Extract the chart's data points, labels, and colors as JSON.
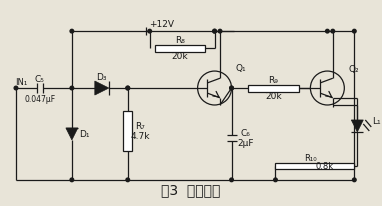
{
  "title": "图3  耦合电路",
  "title_fontsize": 10,
  "bg_color": "#e8e4d8",
  "line_color": "#1a1a1a",
  "components": {
    "vcc_label": "+12V",
    "c5_label": "C₅",
    "c5_value": "0.047μF",
    "d3_label": "D₃",
    "d1_label": "D₁",
    "r8_label": "R₈",
    "r8_value": "20k",
    "r7_label": "R₇",
    "r7_value": "4.7k",
    "q1_label": "Q₁",
    "r9_label": "R₉",
    "r9_value": "20k",
    "c6_label": "C₆",
    "c6_value": "2μF",
    "q2_label": "Q₂",
    "l1_label": "L₁",
    "r10_label": "R₁₀",
    "r10_value": "0.8k",
    "in_label": "IN₁"
  }
}
